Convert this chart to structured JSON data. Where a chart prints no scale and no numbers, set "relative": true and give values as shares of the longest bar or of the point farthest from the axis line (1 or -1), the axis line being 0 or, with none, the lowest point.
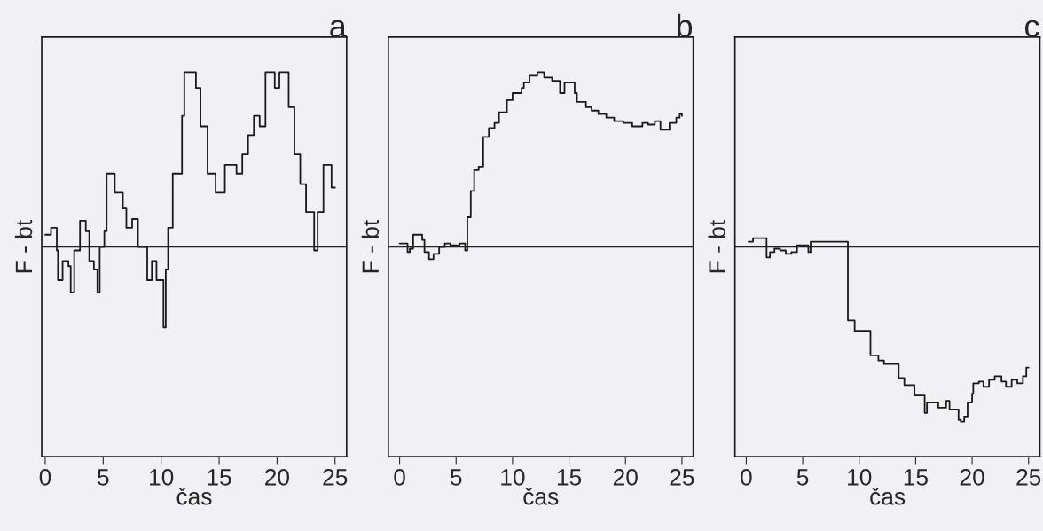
{
  "chart_data": [
    {
      "type": "step",
      "title": "a",
      "xlabel": "čas",
      "ylabel": "F - bt",
      "relative": true,
      "xlim": [
        -0.3,
        26
      ],
      "xticks": [
        0,
        5,
        10,
        15,
        20,
        25
      ],
      "tick_labels": "x",
      "grid": false,
      "legend": false,
      "ref_lines": [
        {
          "axis": "y",
          "value": 0,
          "color": "#222222"
        }
      ],
      "series": [
        {
          "color": "#1a1a1a",
          "x": [
            0,
            0.5,
            1,
            1.1,
            1.5,
            2,
            2.2,
            2.5,
            3,
            3.5,
            3.8,
            4.2,
            4.5,
            4.7,
            5.1,
            5.3,
            6,
            6.7,
            7,
            7.5,
            8,
            8.8,
            9.2,
            9.6,
            10.2,
            10.4,
            10.6,
            11,
            11.8,
            12,
            13,
            13.4,
            14,
            14.7,
            15.5,
            16.5,
            17,
            17.5,
            18,
            18.5,
            19,
            19.8,
            20.2,
            21,
            21.5,
            22,
            22.5,
            23.2,
            23.5,
            24,
            24.7,
            25
          ],
          "values": [
            0.07,
            0.11,
            -0.02,
            -0.19,
            -0.08,
            -0.11,
            -0.26,
            -0.02,
            0.15,
            0.09,
            -0.08,
            -0.13,
            -0.26,
            0,
            0.09,
            0.42,
            0.31,
            0.22,
            0.11,
            0.16,
            0,
            -0.19,
            -0.08,
            -0.19,
            -0.46,
            -0.13,
            0.11,
            0.42,
            0.75,
            1.0,
            0.91,
            0.69,
            0.42,
            0.31,
            0.47,
            0.42,
            0.53,
            0.64,
            0.75,
            0.69,
            1.0,
            0.91,
            1.0,
            0.8,
            0.53,
            0.36,
            0.2,
            -0.02,
            0.2,
            0.47,
            0.34,
            0.34
          ]
        }
      ]
    },
    {
      "type": "step",
      "title": "b",
      "xlabel": "čas",
      "ylabel": "F - bt",
      "relative": true,
      "xlim": [
        -1,
        26
      ],
      "xticks": [
        0,
        5,
        10,
        15,
        20,
        25
      ],
      "tick_labels": "x",
      "grid": false,
      "legend": false,
      "ref_lines": [
        {
          "axis": "y",
          "value": 0,
          "color": "#222222"
        }
      ],
      "series": [
        {
          "color": "#1a1a1a",
          "x": [
            0,
            0.7,
            0.9,
            1.2,
            2,
            2.2,
            2.6,
            3,
            3.5,
            4,
            4.5,
            5.3,
            5.8,
            6,
            6.3,
            6.6,
            7,
            7.4,
            7.9,
            8.4,
            8.8,
            9.5,
            10,
            10.8,
            11,
            11.5,
            12.2,
            12.8,
            13.5,
            14.2,
            14.6,
            15.5,
            15.7,
            16.5,
            17,
            17.6,
            18.3,
            19,
            19.8,
            20.6,
            21.5,
            22,
            22.6,
            23.1,
            23.9,
            24.5,
            24.8,
            25
          ],
          "values": [
            0.02,
            -0.03,
            -0.01,
            0.07,
            0.04,
            -0.03,
            -0.07,
            -0.04,
            0,
            0.02,
            0.01,
            0.02,
            -0.02,
            0.17,
            0.32,
            0.44,
            0.46,
            0.63,
            0.68,
            0.71,
            0.77,
            0.84,
            0.88,
            0.91,
            0.94,
            0.98,
            1.0,
            0.97,
            0.95,
            0.88,
            0.94,
            0.88,
            0.83,
            0.8,
            0.78,
            0.76,
            0.74,
            0.72,
            0.71,
            0.69,
            0.71,
            0.7,
            0.72,
            0.67,
            0.71,
            0.74,
            0.76,
            0.75
          ]
        }
      ]
    },
    {
      "type": "step",
      "title": "c",
      "xlabel": "čas",
      "ylabel": "F - bt",
      "relative": true,
      "xlim": [
        -1,
        26
      ],
      "xticks": [
        0,
        5,
        10,
        15,
        20,
        25
      ],
      "tick_labels": "x",
      "grid": false,
      "legend": false,
      "ref_lines": [
        {
          "axis": "y",
          "value": 0,
          "color": "#222222"
        }
      ],
      "series": [
        {
          "color": "#1a1a1a",
          "x": [
            0.2,
            0.6,
            1.7,
            1.8,
            2.1,
            2.5,
            3,
            3.5,
            4,
            4.5,
            5.5,
            5.7,
            8.9,
            9,
            9.6,
            11,
            11.7,
            12.2,
            13.5,
            14,
            14.9,
            15.8,
            16,
            17,
            17.7,
            18,
            18.8,
            19,
            19.3,
            19.6,
            20,
            20.1,
            20.6,
            21,
            21.5,
            22,
            22.6,
            23,
            23.5,
            24,
            24.5,
            24.8,
            25
          ],
          "values": [
            0.03,
            0.05,
            0.05,
            -0.06,
            -0.03,
            -0.01,
            -0.02,
            -0.04,
            -0.03,
            0.01,
            -0.03,
            0.03,
            0.03,
            -0.42,
            -0.48,
            -0.62,
            -0.65,
            -0.67,
            -0.75,
            -0.79,
            -0.85,
            -0.95,
            -0.89,
            -0.92,
            -0.88,
            -0.93,
            -0.99,
            -1.0,
            -0.97,
            -0.89,
            -0.84,
            -0.78,
            -0.77,
            -0.8,
            -0.76,
            -0.74,
            -0.77,
            -0.8,
            -0.76,
            -0.78,
            -0.74,
            -0.69,
            -0.69
          ]
        }
      ]
    }
  ]
}
